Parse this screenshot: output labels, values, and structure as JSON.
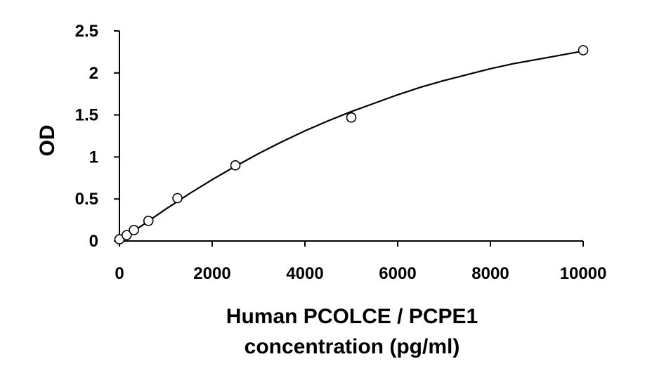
{
  "chart_data": {
    "type": "scatter",
    "xlabel_lines": [
      "Human PCOLCE / PCPE1",
      "concentration (pg/ml)"
    ],
    "ylabel": "OD",
    "xlim": [
      0,
      10000
    ],
    "ylim": [
      0,
      2.5
    ],
    "x_ticks": [
      0,
      2000,
      4000,
      6000,
      8000,
      10000
    ],
    "x_tick_labels": [
      "0",
      "2000",
      "4000",
      "6000",
      "8000",
      "10000"
    ],
    "y_ticks": [
      0,
      0.5,
      1,
      1.5,
      2,
      2.5
    ],
    "y_tick_labels": [
      "0",
      "0.5",
      "1",
      "1.5",
      "2",
      "2.5"
    ],
    "grid": false,
    "legend": "none",
    "points": {
      "x": [
        0,
        156,
        312,
        625,
        1250,
        2500,
        5000,
        10000
      ],
      "y": [
        0.02,
        0.07,
        0.13,
        0.24,
        0.51,
        0.9,
        1.47,
        2.27
      ]
    },
    "fit_curve": {
      "x": [
        0,
        500,
        1000,
        1500,
        2000,
        2500,
        3000,
        3500,
        4000,
        4500,
        5000,
        5500,
        6000,
        6500,
        7000,
        7500,
        8000,
        8500,
        9000,
        9500,
        10000
      ],
      "y": [
        0.0,
        0.19,
        0.38,
        0.56,
        0.73,
        0.89,
        1.04,
        1.18,
        1.31,
        1.43,
        1.54,
        1.64,
        1.74,
        1.83,
        1.91,
        1.98,
        2.05,
        2.11,
        2.16,
        2.21,
        2.26
      ]
    }
  }
}
